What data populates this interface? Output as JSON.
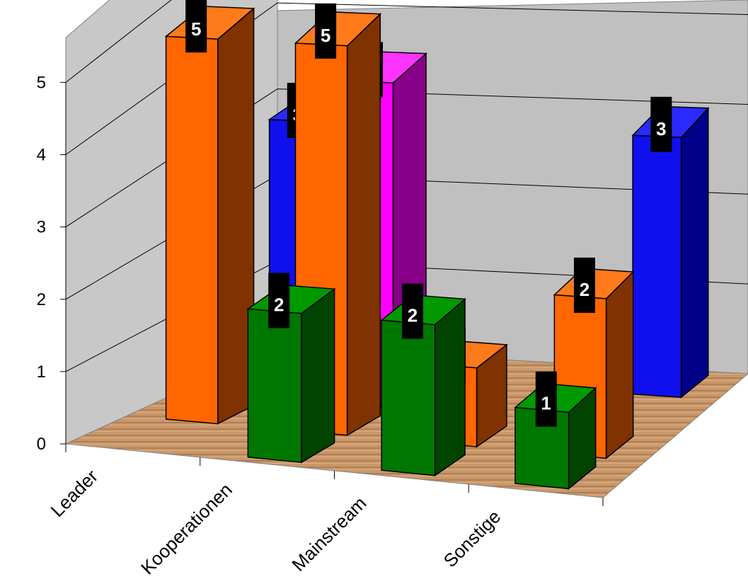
{
  "chart_data": {
    "type": "bar",
    "categories": [
      "Leader",
      "Kooperationen",
      "Mainstream",
      "Sonstige"
    ],
    "ylim": [
      0,
      5
    ],
    "yticks": [
      "0",
      "1",
      "2",
      "3",
      "4",
      "5"
    ],
    "series": [
      {
        "values": [
          3,
          0,
          0,
          3
        ],
        "colors": {
          "front": "#1010ee",
          "side": "#000088",
          "top": "#2a2aff"
        }
      },
      {
        "values": [
          0,
          4,
          0,
          0
        ],
        "colors": {
          "front": "#ff00ff",
          "side": "#880088",
          "top": "#ff33ff"
        }
      },
      {
        "values": [
          5,
          5,
          1,
          2
        ],
        "colors": {
          "front": "#ff6600",
          "side": "#803300",
          "top": "#ff7a1a"
        }
      },
      {
        "values": [
          0,
          2,
          2,
          1
        ],
        "colors": {
          "front": "#007700",
          "side": "#004400",
          "top": "#009900"
        }
      }
    ],
    "data_labels": [
      [
        {
          "cat": 0,
          "text": "3"
        },
        {
          "cat": 3,
          "text": "3"
        }
      ],
      [
        {
          "cat": 1,
          "text": "4"
        }
      ],
      [
        {
          "cat": 0,
          "text": "5"
        },
        {
          "cat": 1,
          "text": "5"
        },
        {
          "cat": 2,
          "text": "1"
        },
        {
          "cat": 3,
          "text": "2"
        }
      ],
      [
        {
          "cat": 1,
          "text": "2"
        },
        {
          "cat": 2,
          "text": "2"
        },
        {
          "cat": 3,
          "text": "1"
        }
      ]
    ],
    "colors": {
      "back_wall": "#c0c0c0",
      "left_wall": "#c8c8c8",
      "floor": "#c89868",
      "gridline": "#000000"
    }
  }
}
